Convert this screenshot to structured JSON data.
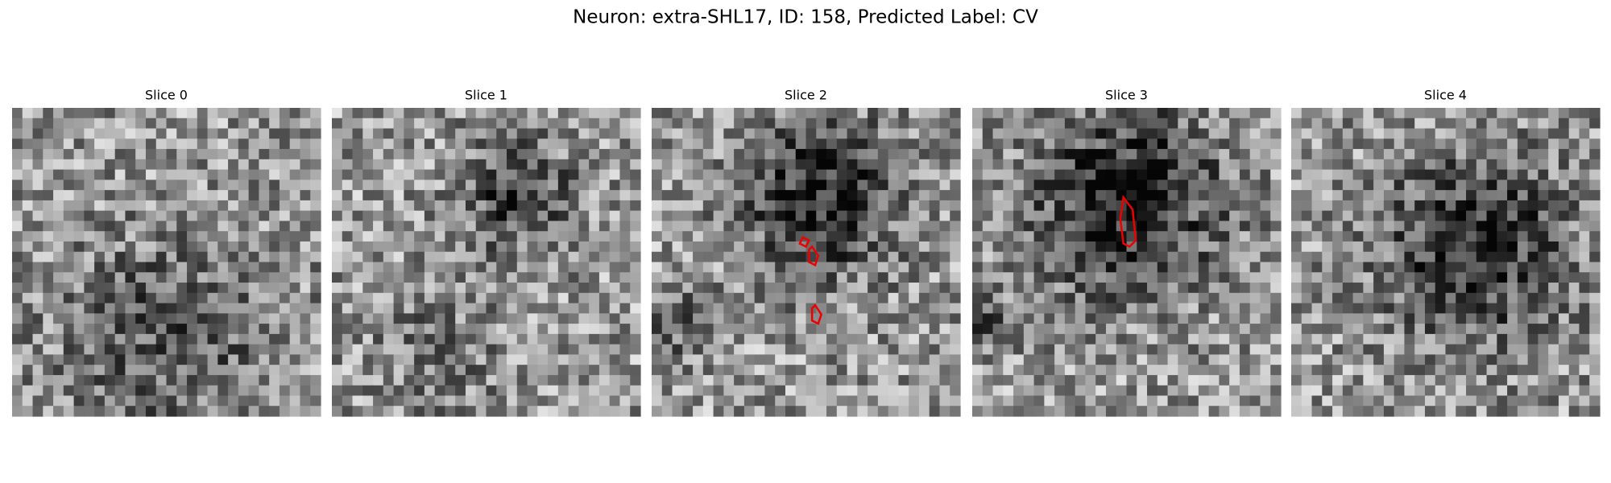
{
  "figure": {
    "title": "Neuron: extra-SHL17, ID: 158, Predicted Label: CV",
    "panels": [
      {
        "title": "Slice 0"
      },
      {
        "title": "Slice 1"
      },
      {
        "title": "Slice 2"
      },
      {
        "title": "Slice 3"
      },
      {
        "title": "Slice 4"
      }
    ]
  }
}
